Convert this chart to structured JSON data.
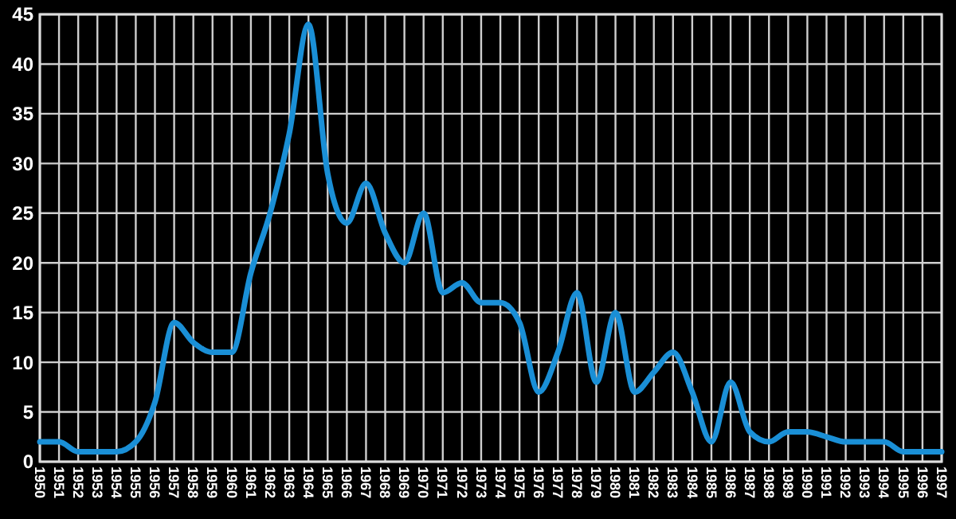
{
  "chart_data": {
    "type": "line",
    "x": [
      1950,
      1951,
      1952,
      1953,
      1954,
      1955,
      1956,
      1957,
      1958,
      1959,
      1960,
      1961,
      1962,
      1963,
      1964,
      1965,
      1966,
      1967,
      1968,
      1969,
      1970,
      1971,
      1972,
      1973,
      1974,
      1975,
      1976,
      1977,
      1978,
      1979,
      1980,
      1981,
      1982,
      1983,
      1984,
      1985,
      1986,
      1987,
      1988,
      1989,
      1990,
      1991,
      1992,
      1993,
      1994,
      1995,
      1996,
      1997
    ],
    "series": [
      {
        "color": "#1a8fd6",
        "values": [
          2,
          2,
          1,
          1,
          1,
          2,
          6,
          14,
          12,
          11,
          11,
          19,
          25,
          33,
          44,
          29,
          24,
          28,
          23,
          20,
          25,
          17,
          18,
          16,
          16,
          14,
          7,
          11,
          17,
          8,
          15,
          7,
          9,
          11,
          7,
          2,
          8,
          3,
          2,
          3,
          3,
          2.5,
          2,
          2,
          2,
          1,
          1,
          1
        ]
      }
    ],
    "xlim": [
      1950,
      1997
    ],
    "xticks": [
      1950,
      1951,
      1952,
      1953,
      1954,
      1955,
      1956,
      1957,
      1958,
      1959,
      1960,
      1961,
      1962,
      1963,
      1964,
      1965,
      1966,
      1967,
      1968,
      1969,
      1970,
      1971,
      1972,
      1973,
      1974,
      1975,
      1976,
      1977,
      1978,
      1979,
      1980,
      1981,
      1982,
      1983,
      1984,
      1985,
      1986,
      1987,
      1988,
      1989,
      1990,
      1991,
      1992,
      1993,
      1994,
      1995,
      1996,
      1997
    ],
    "ylim": [
      0,
      45
    ],
    "yticks": [
      0,
      5,
      10,
      15,
      20,
      25,
      30,
      35,
      40,
      45
    ],
    "grid": true,
    "marker": "none",
    "line_style": "solid"
  }
}
